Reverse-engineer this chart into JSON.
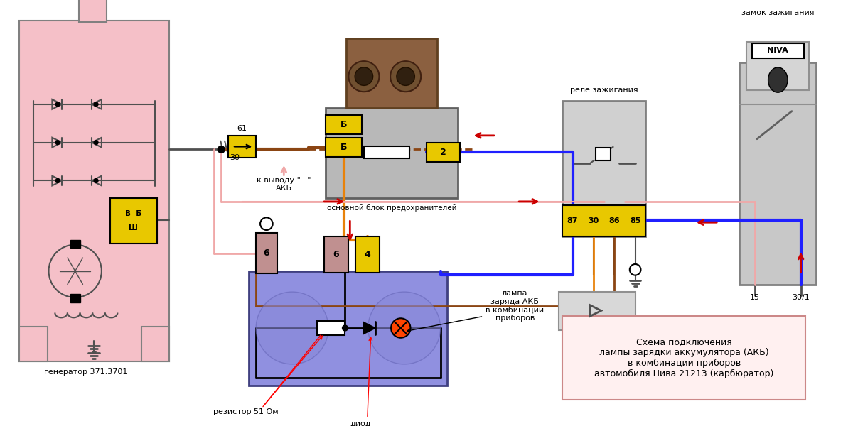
{
  "title": "Схема подключения\nлампы зарядки аккумулятора (АКБ)\nв комбинации приборов\nавтомобиля Нива 21213 (карбюратор)",
  "bg_color": "#ffffff",
  "generator_label": "генератор 371.3701",
  "akb_label": "к выводу \"+\"\nАКБ",
  "main_block_label": "основной блок предохранителей",
  "relay_label": "реле зажигания",
  "lock_label": "замок зажигания",
  "lamp_label": "лампа\nзаряда АКБ\nв комбинации\nприборов",
  "resistor_label": "резистор 51 Ом",
  "diod_label": "диод",
  "colors": {
    "generator_fill": "#f5c0c8",
    "yellow_conn": "#e8c800",
    "orange_wire": "#e8820a",
    "pink_wire": "#f0a8a8",
    "brown_wire": "#8B4513",
    "blue_wire": "#2020ff",
    "dark_gray": "#505050",
    "black": "#000000",
    "white": "#ffffff",
    "gray_body": "#c8c8c8",
    "red_arrow": "#cc0000",
    "resistor_fill": "#c09090",
    "panel_fill": "#9090e0",
    "tan": "#c8a060",
    "legend_bg": "#fff0f0",
    "legend_border": "#cc8888"
  }
}
